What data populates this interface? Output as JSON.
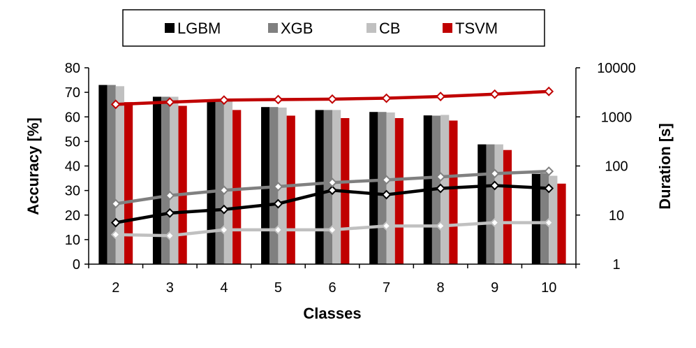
{
  "chart_data": {
    "type": "bar",
    "categories": [
      "2",
      "3",
      "4",
      "5",
      "6",
      "7",
      "8",
      "9",
      "10"
    ],
    "xlabel": "Classes",
    "ylabel": "Accuracy [%]",
    "y2label": "Duration [s]",
    "ylim": [
      0,
      80
    ],
    "yticks": [
      "0",
      "10",
      "20",
      "30",
      "40",
      "50",
      "60",
      "70",
      "80"
    ],
    "y2lim": [
      1,
      10000
    ],
    "y2scale": "log",
    "y2ticks": [
      "1",
      "10",
      "100",
      "1000",
      "10000"
    ],
    "legend_position": "top",
    "grid": false,
    "series": [
      {
        "name": "LGBM",
        "color": "#000000",
        "accuracy": [
          73,
          68.2,
          66.5,
          64,
          62.8,
          62,
          60.6,
          48.8,
          36.8
        ],
        "duration": [
          7,
          11,
          13,
          17,
          32,
          26,
          35,
          40,
          35
        ]
      },
      {
        "name": "XGB",
        "color": "#808080",
        "accuracy": [
          73,
          68.2,
          66.5,
          64,
          62.8,
          62,
          60.5,
          48.8,
          37
        ],
        "duration": [
          17,
          25,
          32,
          38,
          46,
          52,
          60,
          70,
          78
        ]
      },
      {
        "name": "CB",
        "color": "#c0c0c0",
        "accuracy": [
          72.5,
          68.2,
          66.5,
          63.8,
          62.8,
          61.8,
          60.8,
          48.8,
          36
        ],
        "duration": [
          4,
          3.8,
          5,
          5,
          5,
          6,
          6,
          7,
          7
        ]
      },
      {
        "name": "TSVM",
        "color": "#c00000",
        "accuracy": [
          66,
          64.5,
          62.8,
          60.5,
          59.5,
          59.5,
          58.5,
          46.5,
          32.8
        ],
        "duration": [
          1800,
          2000,
          2200,
          2250,
          2300,
          2400,
          2600,
          2900,
          3300
        ]
      }
    ]
  }
}
